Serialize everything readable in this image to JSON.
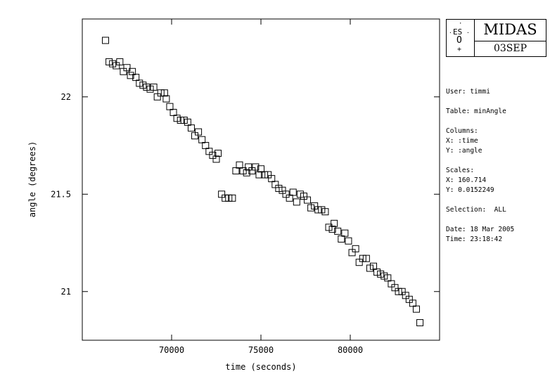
{
  "logo": {
    "org_letters": "ES",
    "org_letter_bottom": "O",
    "star_mark": "+",
    "title": "MIDAS",
    "date_code": "03SEP"
  },
  "info": {
    "user": "User: timmi",
    "table": "Table: minAngle",
    "columns_header": "Columns:",
    "columns_x": "X: :time",
    "columns_y": "Y: :angle",
    "scales_header": "Scales:",
    "scales_x": "X: 160.714",
    "scales_y": "Y: 0.0152249",
    "selection": "Selection:  ALL",
    "date": "Date: 18 Mar 2005",
    "time": "Time: 23:18:42"
  },
  "chart_data": {
    "type": "scatter",
    "xlabel": "time (seconds)",
    "ylabel": "angle (degrees)",
    "xlim": [
      65000,
      85000
    ],
    "ylim": [
      20.75,
      22.4
    ],
    "xticks": [
      70000,
      75000,
      80000
    ],
    "xtick_labels": [
      "70000",
      "75000",
      "80000"
    ],
    "yticks": [
      21,
      21.5,
      22
    ],
    "ytick_labels": [
      "21",
      "21.5",
      "22"
    ],
    "grid": false,
    "marker": "open-square",
    "x": [
      66300,
      66500,
      66700,
      66900,
      67100,
      67300,
      67500,
      67700,
      67800,
      68000,
      68200,
      68400,
      68600,
      68800,
      69000,
      69200,
      69400,
      69600,
      69700,
      69900,
      70100,
      70300,
      70500,
      70700,
      70900,
      71100,
      71300,
      71500,
      71700,
      71900,
      72100,
      72300,
      72500,
      72600,
      72800,
      73000,
      73200,
      73400,
      73600,
      73800,
      74000,
      74200,
      74300,
      74500,
      74700,
      74900,
      75000,
      75200,
      75400,
      75600,
      75800,
      76000,
      76200,
      76400,
      76600,
      76800,
      77000,
      77200,
      77400,
      77600,
      77800,
      78000,
      78200,
      78400,
      78600,
      78800,
      79000,
      79100,
      79300,
      79500,
      79700,
      79900,
      80100,
      80300,
      80500,
      80700,
      80900,
      81100,
      81300,
      81500,
      81700,
      81900,
      82100,
      82300,
      82500,
      82700,
      82900,
      83100,
      83300,
      83500,
      83700,
      83900
    ],
    "y": [
      22.29,
      22.18,
      22.17,
      22.16,
      22.18,
      22.13,
      22.15,
      22.11,
      22.13,
      22.1,
      22.07,
      22.06,
      22.05,
      22.04,
      22.05,
      22.0,
      22.02,
      22.02,
      21.99,
      21.95,
      21.92,
      21.89,
      21.88,
      21.88,
      21.87,
      21.84,
      21.8,
      21.82,
      21.78,
      21.75,
      21.72,
      21.7,
      21.68,
      21.71,
      21.5,
      21.48,
      21.48,
      21.48,
      21.62,
      21.65,
      21.62,
      21.61,
      21.64,
      21.62,
      21.64,
      21.6,
      21.63,
      21.6,
      21.6,
      21.58,
      21.55,
      21.53,
      21.52,
      21.5,
      21.48,
      21.51,
      21.46,
      21.5,
      21.49,
      21.47,
      21.43,
      21.44,
      21.42,
      21.42,
      21.41,
      21.33,
      21.32,
      21.35,
      21.31,
      21.27,
      21.3,
      21.26,
      21.2,
      21.22,
      21.15,
      21.17,
      21.17,
      21.12,
      21.13,
      21.1,
      21.09,
      21.08,
      21.07,
      21.04,
      21.02,
      21.0,
      21.0,
      20.98,
      20.96,
      20.94,
      20.91,
      20.84
    ]
  }
}
